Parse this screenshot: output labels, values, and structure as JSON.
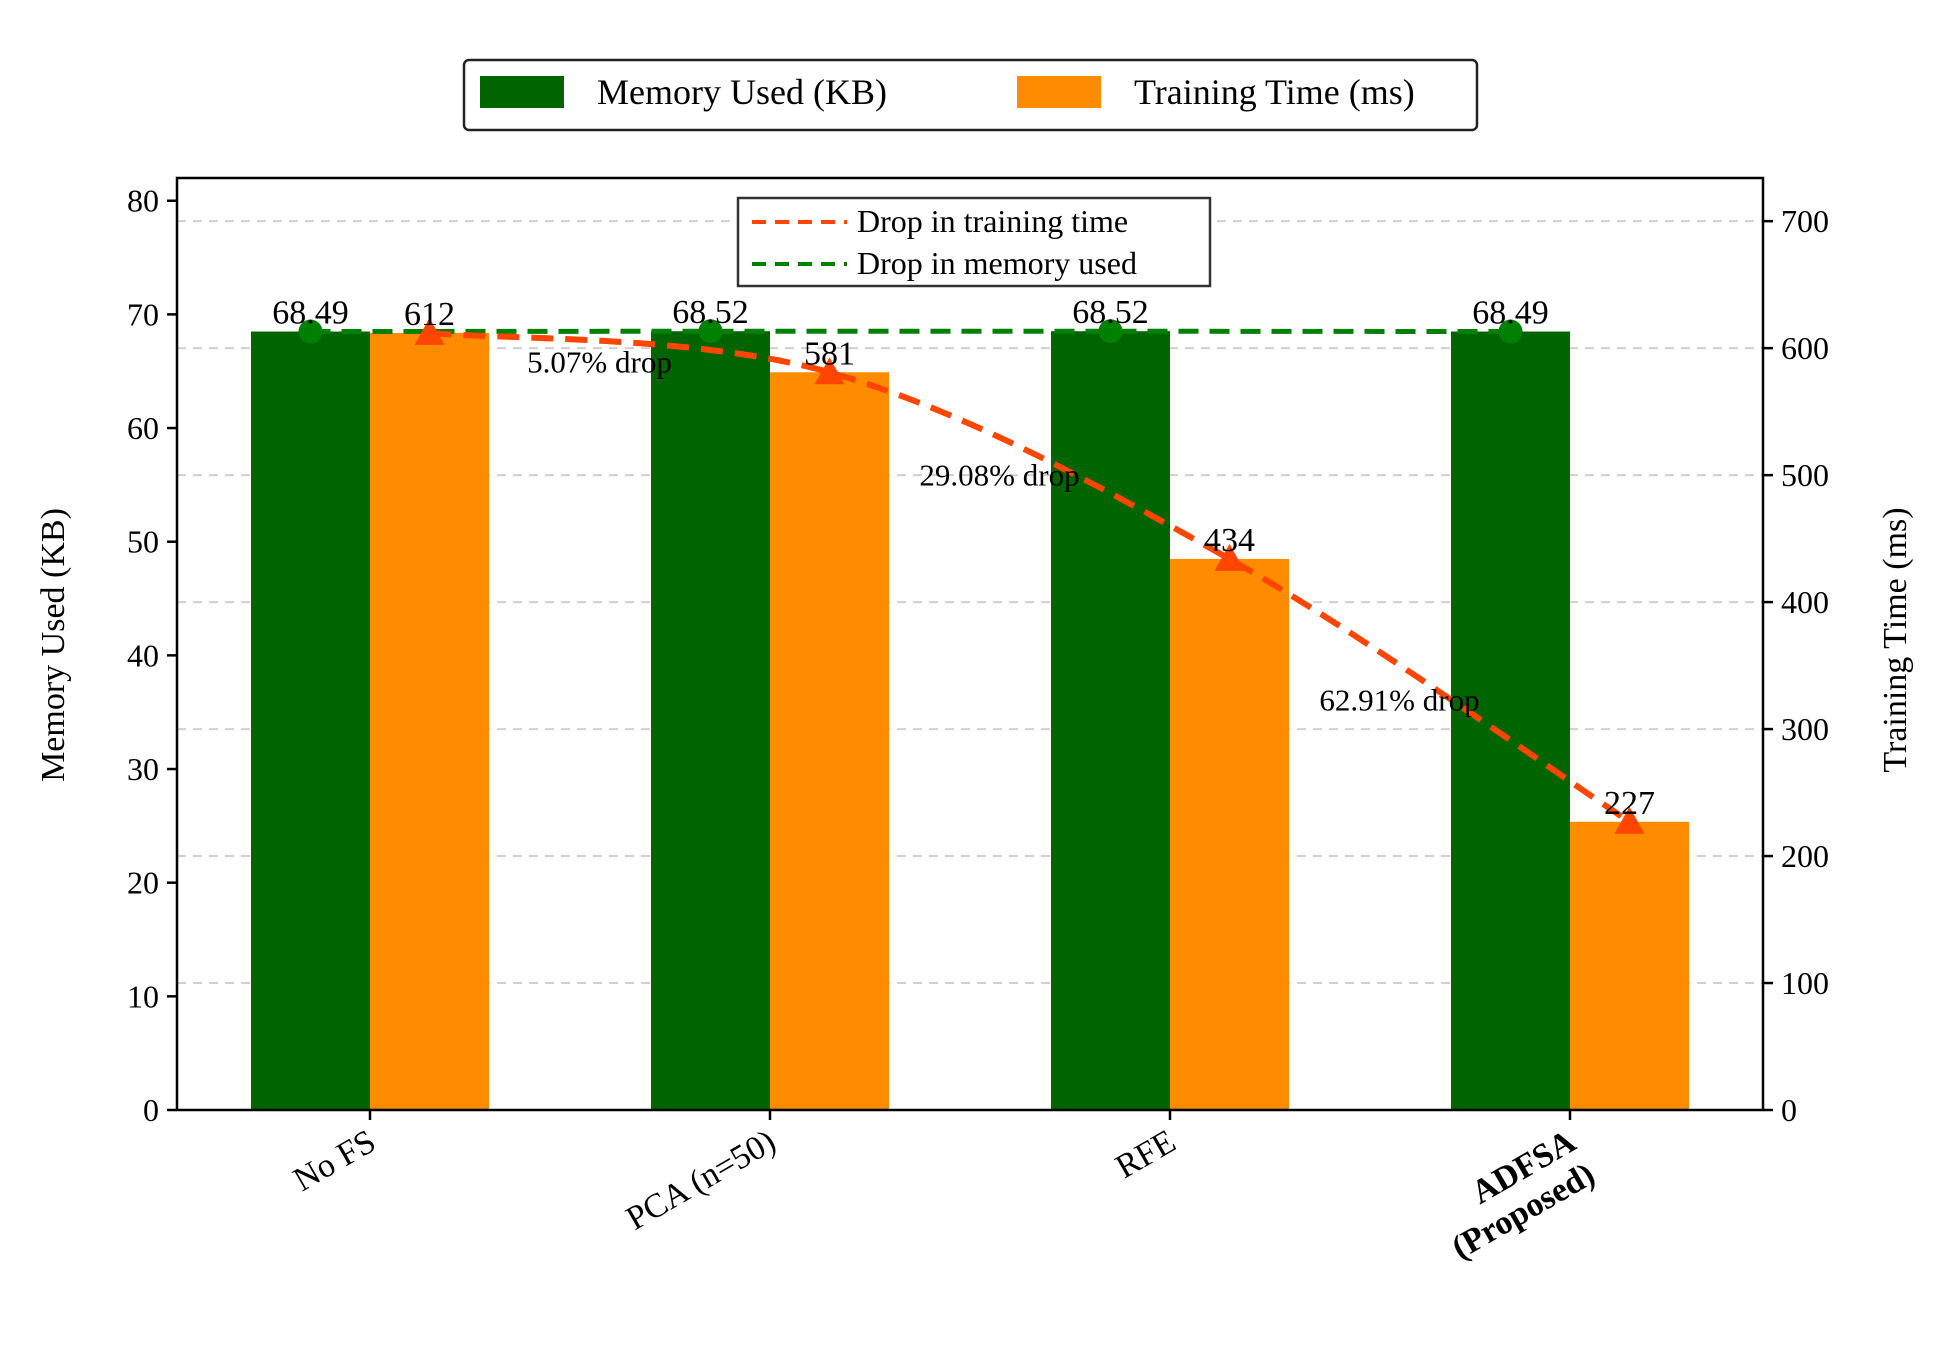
{
  "chart_data": {
    "type": "bar",
    "categories": [
      "No FS",
      "PCA (n=50)",
      "RFE",
      "ADFSA (Proposed)"
    ],
    "category_labels": [
      {
        "lines": [
          "No FS"
        ],
        "bold": false
      },
      {
        "lines": [
          "PCA (n=50)"
        ],
        "bold": false
      },
      {
        "lines": [
          "RFE"
        ],
        "bold": false
      },
      {
        "lines": [
          "ADFSA",
          "(Proposed)"
        ],
        "bold": true
      }
    ],
    "series": [
      {
        "name": "Memory Used (KB)",
        "axis": "left",
        "color": "#006400",
        "values": [
          68.49,
          68.52,
          68.52,
          68.49
        ],
        "data_labels": [
          "68.49",
          "68.52",
          "68.52",
          "68.49"
        ]
      },
      {
        "name": "Training Time (ms)",
        "axis": "right",
        "color": "#ff8c00",
        "values": [
          612,
          581,
          434,
          227
        ],
        "data_labels": [
          "612",
          "581",
          "434",
          "227"
        ]
      }
    ],
    "lines": [
      {
        "name": "Drop in training time",
        "axis": "right",
        "color": "#ff4500",
        "marker": "triangle",
        "values": [
          612,
          581,
          434,
          227
        ]
      },
      {
        "name": "Drop in memory used",
        "axis": "left",
        "color": "#008000",
        "marker": "circle",
        "values": [
          68.49,
          68.52,
          68.52,
          68.49
        ]
      }
    ],
    "drop_annotations": [
      {
        "category_index": 1,
        "text": "5.07% drop"
      },
      {
        "category_index": 2,
        "text": "29.08% drop"
      },
      {
        "category_index": 3,
        "text": "62.91% drop"
      }
    ],
    "ylabel_left": "Memory Used (KB)",
    "ylabel_right": "Training Time (ms)",
    "ylim_left": [
      0,
      82
    ],
    "ylim_right": [
      0,
      734
    ],
    "yticks_left": [
      "0",
      "10",
      "20",
      "30",
      "40",
      "50",
      "60",
      "70",
      "80"
    ],
    "yticks_right": [
      "0",
      "100",
      "200",
      "300",
      "400",
      "500",
      "600",
      "700"
    ],
    "grid": "horizontal dashed (right axis)",
    "legend_top": [
      "Memory Used (KB)",
      "Training Time (ms)"
    ],
    "legend_inner": [
      "Drop in training time",
      "Drop in memory used"
    ]
  }
}
